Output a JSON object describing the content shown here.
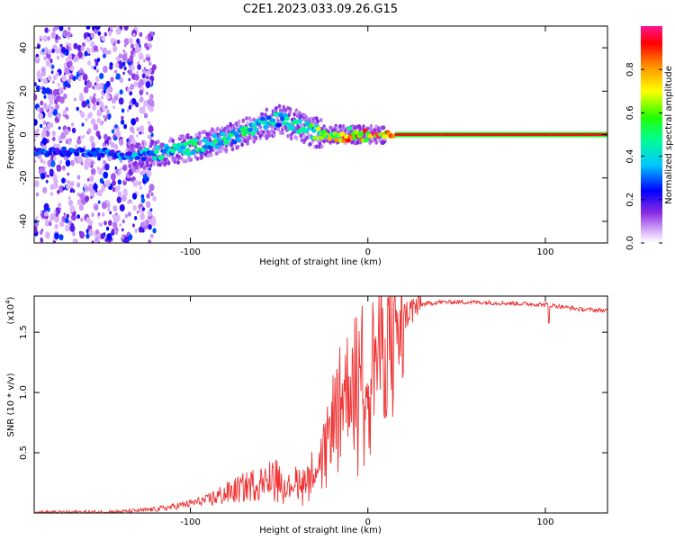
{
  "title": "C2E1.2023.033.09.26.G15",
  "colorbar": {
    "label": "Normalized spectral amplitude",
    "ticks": [
      "0.0",
      "0.2",
      "0.4",
      "0.6",
      "0.8"
    ],
    "tick_values": [
      0.0,
      0.2,
      0.4,
      0.6,
      0.8
    ],
    "range": [
      0,
      1
    ]
  },
  "colors": {
    "snr_line": "#ee3333",
    "grid_background": "#ffffff"
  },
  "chart_data": [
    {
      "type": "heatmap",
      "name": "spectrogram",
      "xlabel": "Height of straight line (km)",
      "ylabel": "Frequency (Hz)",
      "xlim": [
        -188,
        135
      ],
      "ylim": [
        -50,
        50
      ],
      "xticks": [
        -100,
        0,
        100
      ],
      "xtick_labels": [
        "-100",
        "0",
        "100"
      ],
      "yticks": [
        -40,
        -20,
        0,
        20,
        40
      ],
      "ytick_labels": [
        "-40",
        "-20",
        "0",
        "20",
        "40"
      ],
      "ridge": {
        "x": [
          -188,
          -170,
          -150,
          -135,
          -120,
          -100,
          -80,
          -60,
          -50,
          -40,
          -30,
          -20,
          -10,
          0,
          10,
          135
        ],
        "y": [
          -8,
          -8,
          -8,
          -10,
          -9,
          -6,
          -2,
          4,
          7,
          4,
          1,
          0,
          0,
          0,
          0,
          0
        ],
        "amplitude": [
          0.3,
          0.3,
          0.3,
          0.35,
          0.45,
          0.5,
          0.5,
          0.5,
          0.45,
          0.55,
          0.6,
          0.75,
          0.85,
          0.9,
          0.95,
          1.0
        ]
      },
      "noise_region_x": [
        -188,
        -130
      ]
    },
    {
      "type": "line",
      "name": "snr",
      "xlabel": "Height of straight line (km)",
      "ylabel": "SNR (10 * v/v)",
      "y_multiplier": "(x10",
      "y_exponent": "4",
      "xlim": [
        -188,
        135
      ],
      "ylim": [
        0,
        18000
      ],
      "xticks": [
        -100,
        0,
        100
      ],
      "xtick_labels": [
        "-100",
        "0",
        "100"
      ],
      "yticks": [
        5000,
        10000,
        15000
      ],
      "ytick_labels": [
        "0.5",
        "1.0",
        "1.5"
      ],
      "series": [
        {
          "name": "SNR",
          "x": [
            -188,
            -160,
            -140,
            -120,
            -110,
            -100,
            -90,
            -80,
            -70,
            -60,
            -55,
            -50,
            -45,
            -40,
            -35,
            -30,
            -27,
            -24,
            -22,
            -20,
            -18,
            -15,
            -10,
            -5,
            0,
            5,
            8,
            10,
            12,
            15,
            20,
            25,
            30,
            40,
            60,
            80,
            100,
            110,
            120,
            135
          ],
          "y": [
            50,
            80,
            100,
            300,
            500,
            800,
            1100,
            1600,
            2100,
            2600,
            3500,
            3000,
            2200,
            2800,
            3000,
            3900,
            4500,
            5500,
            6500,
            8000,
            9000,
            9800,
            11000,
            12000,
            12500,
            13000,
            13800,
            14200,
            14800,
            15500,
            16300,
            16900,
            17300,
            17500,
            17500,
            17400,
            17300,
            17100,
            16900,
            16800
          ]
        }
      ]
    }
  ]
}
